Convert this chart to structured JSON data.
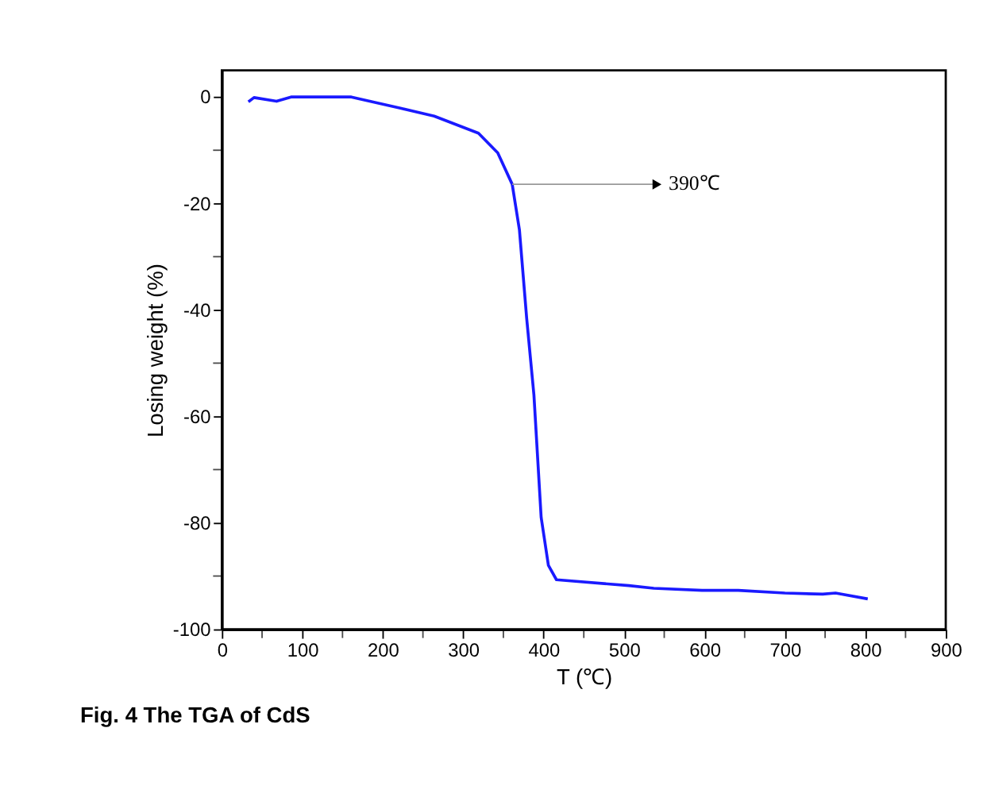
{
  "chart_data": {
    "type": "line",
    "title": "Fig. 4 The TGA of CdS",
    "xlabel": "T (℃)",
    "ylabel": "Losing weight (%)",
    "x": [
      33,
      40,
      68,
      86,
      161,
      222,
      264,
      319,
      343,
      361,
      370,
      379,
      388,
      397,
      406,
      416,
      506,
      537,
      597,
      642,
      700,
      747,
      763,
      803
    ],
    "series": [
      {
        "color": "#1a1aff",
        "values": [
          -0.9,
          -0.1,
          -0.8,
          0,
          0,
          -2.1,
          -3.6,
          -6.8,
          -10.5,
          -16.4,
          -25,
          -41.6,
          -56,
          -79,
          -88,
          -90.7,
          -91.8,
          -92.3,
          -92.7,
          -92.7,
          -93.2,
          -93.4,
          -93.2,
          -94.3
        ]
      }
    ],
    "annotations": [
      {
        "text": "390℃",
        "x": 361,
        "y": -16.4
      }
    ],
    "xlim": [
      0,
      900
    ],
    "ylim": [
      -100,
      5
    ],
    "xticks": [
      0,
      {
        "value": 50,
        "label": null
      },
      100,
      {
        "value": 150,
        "label": null
      },
      200,
      {
        "value": 250,
        "label": null
      },
      300,
      {
        "value": 350,
        "label": null
      },
      400,
      {
        "value": 450,
        "label": null
      },
      500,
      {
        "value": 550,
        "label": null
      },
      600,
      {
        "value": 650,
        "label": null
      },
      700,
      {
        "value": 750,
        "label": null
      },
      800,
      {
        "value": 850,
        "label": null
      },
      900
    ],
    "yticks": [
      -100,
      {
        "value": -90,
        "label": null
      },
      -80,
      {
        "value": -70,
        "label": null
      },
      -60,
      {
        "value": -50,
        "label": null
      },
      -40,
      {
        "value": -30,
        "label": null
      },
      -20,
      {
        "value": -10,
        "label": null
      },
      0
    ],
    "grid": false,
    "marker": "none",
    "line_style": "solid"
  }
}
